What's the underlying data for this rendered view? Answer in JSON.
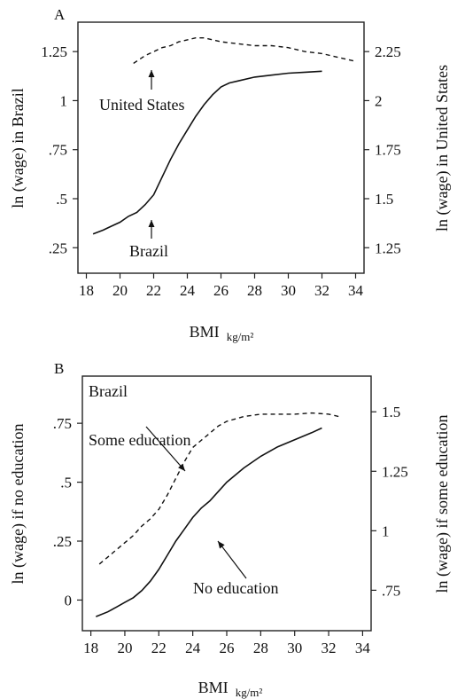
{
  "chart_data": [
    {
      "panel": "A",
      "type": "line",
      "annotation_top_left": "",
      "xlabel": "BMI",
      "xlabel_unit": "kg/m²",
      "ylabel_left": "ln (wage) in Brazil",
      "ylabel_right": "ln (wage) in United States",
      "xlim": [
        17.5,
        34.5
      ],
      "ylim_left": [
        0.12,
        1.4
      ],
      "ylim_right": [
        1.12,
        2.4
      ],
      "x_ticks": [
        18,
        20,
        22,
        24,
        26,
        28,
        30,
        32,
        34
      ],
      "x_tick_labels": [
        "18",
        "20",
        "22",
        "24",
        "26",
        "28",
        "30",
        "32",
        "34"
      ],
      "y_left_ticks": [
        0.25,
        0.5,
        0.75,
        1,
        1.25
      ],
      "y_left_tick_labels": [
        ".25",
        ".5",
        ".75",
        "1",
        "1.25"
      ],
      "y_right_ticks": [
        1.25,
        1.5,
        1.75,
        2,
        2.25
      ],
      "y_right_tick_labels": [
        "1.25",
        "1.5",
        "1.75",
        "2",
        "2.25"
      ],
      "series": [
        {
          "name": "Brazil",
          "axis": "left",
          "style": "solid",
          "x": [
            18.4,
            19.0,
            19.5,
            20.0,
            20.5,
            21.0,
            21.5,
            22.0,
            22.5,
            23.0,
            23.5,
            24.0,
            24.5,
            25.0,
            25.5,
            26.0,
            26.5,
            27.0,
            28.0,
            29.0,
            30.0,
            31.0,
            32.0
          ],
          "y": [
            0.32,
            0.34,
            0.36,
            0.38,
            0.41,
            0.43,
            0.47,
            0.52,
            0.61,
            0.7,
            0.78,
            0.85,
            0.92,
            0.98,
            1.03,
            1.07,
            1.09,
            1.1,
            1.12,
            1.13,
            1.14,
            1.145,
            1.15
          ]
        },
        {
          "name": "United States",
          "axis": "right",
          "style": "dashed",
          "x": [
            20.8,
            21.5,
            22.0,
            22.5,
            23.0,
            23.5,
            24.0,
            24.5,
            25.0,
            25.5,
            26.0,
            27.0,
            28.0,
            29.0,
            30.0,
            31.0,
            32.0,
            33.0,
            34.0
          ],
          "y": [
            2.19,
            2.23,
            2.25,
            2.27,
            2.28,
            2.3,
            2.31,
            2.32,
            2.32,
            2.31,
            2.3,
            2.29,
            2.28,
            2.28,
            2.27,
            2.25,
            2.24,
            2.22,
            2.2
          ]
        }
      ],
      "annotations": [
        {
          "text": "United States",
          "target_series": "United States",
          "at_x": 20.8
        },
        {
          "text": "Brazil",
          "target_series": "Brazil",
          "at_x": 20.8
        }
      ]
    },
    {
      "panel": "B",
      "type": "line",
      "annotation_top_left": "Brazil",
      "xlabel": "BMI",
      "xlabel_unit": "kg/m²",
      "ylabel_left": "ln (wage) if no education",
      "ylabel_right": "ln (wage) if some education",
      "xlim": [
        17.5,
        34.5
      ],
      "ylim_left": [
        -0.13,
        0.95
      ],
      "ylim_right": [
        0.58,
        1.65
      ],
      "x_ticks": [
        18,
        20,
        22,
        24,
        26,
        28,
        30,
        32,
        34
      ],
      "x_tick_labels": [
        "18",
        "20",
        "22",
        "24",
        "26",
        "28",
        "30",
        "32",
        "34"
      ],
      "y_left_ticks": [
        0,
        0.25,
        0.5,
        0.75
      ],
      "y_left_tick_labels": [
        "0",
        ".25",
        ".5",
        ".75"
      ],
      "y_right_ticks": [
        0.75,
        1,
        1.25,
        1.5
      ],
      "y_right_tick_labels": [
        ".75",
        "1",
        "1.25",
        "1.5"
      ],
      "series": [
        {
          "name": "No education",
          "axis": "left",
          "style": "solid",
          "x": [
            18.3,
            19.0,
            19.5,
            20.0,
            20.5,
            21.0,
            21.5,
            22.0,
            22.5,
            23.0,
            23.5,
            24.0,
            24.5,
            25.0,
            25.5,
            26.0,
            27.0,
            28.0,
            29.0,
            30.0,
            31.0,
            31.6
          ],
          "y": [
            -0.07,
            -0.05,
            -0.03,
            -0.01,
            0.01,
            0.04,
            0.08,
            0.13,
            0.19,
            0.25,
            0.3,
            0.35,
            0.39,
            0.42,
            0.46,
            0.5,
            0.56,
            0.61,
            0.65,
            0.68,
            0.71,
            0.73
          ]
        },
        {
          "name": "Some education",
          "axis": "right",
          "style": "dashed",
          "x": [
            18.5,
            19.0,
            19.5,
            20.0,
            20.5,
            21.0,
            21.5,
            22.0,
            22.5,
            23.0,
            23.5,
            24.0,
            24.5,
            25.0,
            25.5,
            26.0,
            26.5,
            27.0,
            28.0,
            29.0,
            30.0,
            31.0,
            32.0,
            32.6
          ],
          "y": [
            0.86,
            0.89,
            0.92,
            0.95,
            0.98,
            1.02,
            1.05,
            1.09,
            1.15,
            1.22,
            1.29,
            1.35,
            1.38,
            1.41,
            1.44,
            1.46,
            1.47,
            1.48,
            1.49,
            1.49,
            1.49,
            1.495,
            1.49,
            1.48
          ]
        }
      ],
      "annotations": [
        {
          "text": "Some education",
          "target_series": "Some education",
          "at_x": 22.7
        },
        {
          "text": "No education",
          "target_series": "No education",
          "at_x": 23.8
        }
      ]
    }
  ]
}
